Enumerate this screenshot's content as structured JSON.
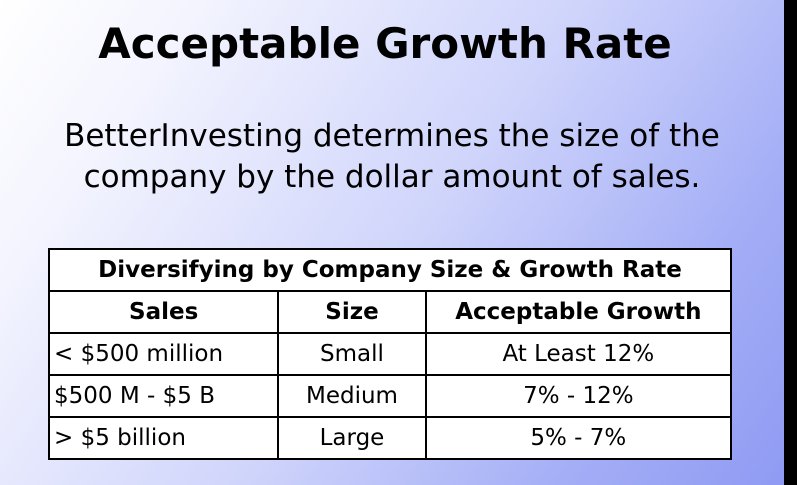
{
  "slide": {
    "title": "Acceptable Growth Rate",
    "body_lines": [
      "BetterInvesting determines the size of the",
      "company by the dollar amount of sales."
    ],
    "table": {
      "caption": "Diversifying by Company Size & Growth Rate",
      "headers": [
        "Sales",
        "Size",
        "Acceptable Growth"
      ],
      "rows": [
        [
          "< $500 million",
          "Small",
          "At Least 12%"
        ],
        [
          "$500 M - $5 B",
          "Medium",
          "7% - 12%"
        ],
        [
          "> $5 billion",
          "Large",
          "5% - 7%"
        ]
      ]
    }
  },
  "colors": {
    "gradient_start": "#ffffff",
    "gradient_end": "#8f9bf3",
    "text": "#000000",
    "table_background": "#ffffff"
  }
}
